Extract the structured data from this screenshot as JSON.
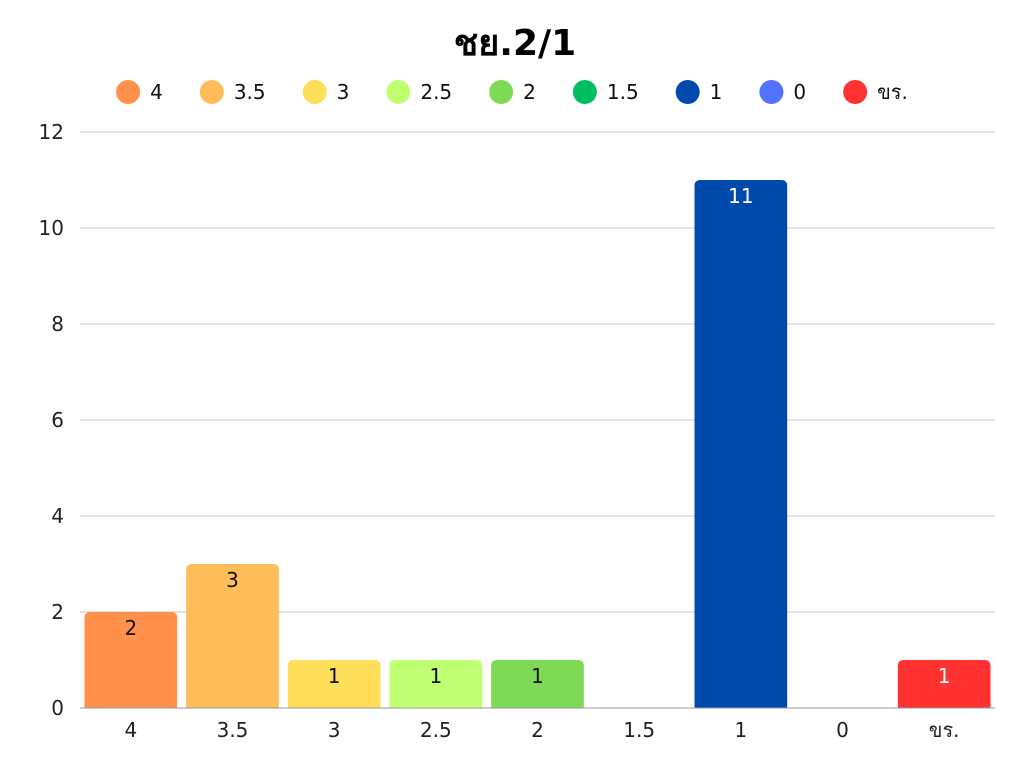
{
  "chart_data": {
    "type": "bar",
    "title": "ชย.2/1",
    "xlabel": "",
    "ylabel": "",
    "categories": [
      "4",
      "3.5",
      "3",
      "2.5",
      "2",
      "1.5",
      "1",
      "0",
      "ขร."
    ],
    "values": [
      2,
      3,
      1,
      1,
      1,
      0,
      11,
      0,
      1
    ],
    "colors": [
      "#ff914d",
      "#ffbd59",
      "#ffde59",
      "#c1ff72",
      "#7ed957",
      "#00bf63",
      "#004aad",
      "#5271ff",
      "#ff3131"
    ],
    "label_colors": [
      "#111111",
      "#111111",
      "#111111",
      "#111111",
      "#111111",
      "#111111",
      "#ffffff",
      "#111111",
      "#ffffff"
    ],
    "ylim": [
      0,
      12
    ],
    "yticks": [
      0,
      2,
      4,
      6,
      8,
      10,
      12
    ],
    "grid": true,
    "legend": {
      "placement": "top-center",
      "entries": [
        "4",
        "3.5",
        "3",
        "2.5",
        "2",
        "1.5",
        "1",
        "0",
        "ขร."
      ]
    }
  }
}
